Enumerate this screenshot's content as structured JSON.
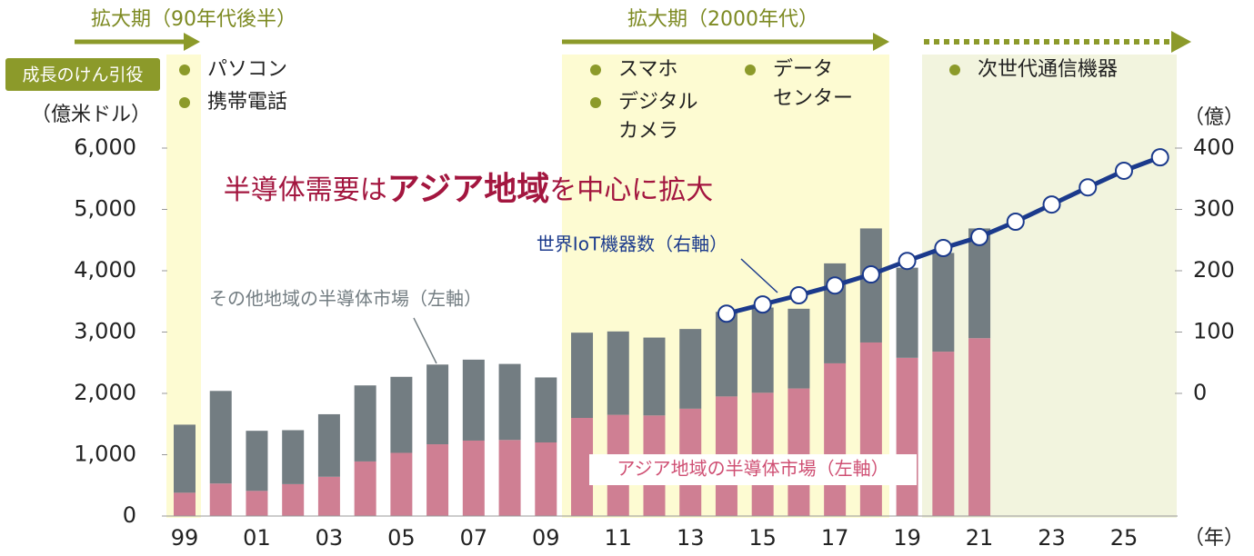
{
  "chart_data": {
    "type": "bar",
    "title_parts": [
      "半導体需要は",
      "アジア地域",
      "を中心に拡大"
    ],
    "badge": "成長のけん引役",
    "y_label": "（億米ドル）",
    "y2_label": "（億）",
    "x_label": "（年）",
    "periods": [
      {
        "label": "拡大期（90年代後半）",
        "items": [
          [
            "パソコン"
          ],
          [
            "携帯電話"
          ]
        ]
      },
      {
        "label": "拡大期（2000年代）",
        "items": [
          [
            "スマホ"
          ],
          [
            "デジタル",
            "カメラ"
          ],
          [
            "データ",
            "センター"
          ]
        ]
      },
      {
        "items": [
          [
            "次世代通信機器"
          ]
        ]
      }
    ],
    "categories": [
      "99",
      null,
      "01",
      null,
      "03",
      null,
      "05",
      null,
      "07",
      null,
      "09",
      null,
      "11",
      null,
      "13",
      null,
      "15",
      null,
      "17",
      null,
      "19",
      null,
      "21",
      null,
      "23",
      null,
      "25",
      null
    ],
    "series": [
      {
        "name": "アジア地域の半導体市場（左軸）",
        "color": "#cf7f93",
        "values": [
          380,
          530,
          410,
          520,
          640,
          890,
          1030,
          1170,
          1230,
          1240,
          1200,
          1600,
          1650,
          1640,
          1750,
          1950,
          2010,
          2080,
          2490,
          2830,
          2580,
          2680,
          2900,
          null,
          null,
          null,
          null,
          null
        ]
      },
      {
        "name": "その他地域の半導体市場（左軸）",
        "color": "#737d82",
        "values": [
          1110,
          1510,
          980,
          880,
          1020,
          1240,
          1240,
          1300,
          1320,
          1240,
          1060,
          1390,
          1360,
          1270,
          1300,
          1380,
          1390,
          1300,
          1630,
          1860,
          1470,
          1610,
          1790,
          null,
          null,
          null,
          null,
          null
        ]
      },
      {
        "name": "世界IoT機器数（右軸）",
        "color": "#1b3a8c",
        "axis": "y2",
        "values": [
          null,
          null,
          null,
          null,
          null,
          null,
          null,
          null,
          null,
          null,
          null,
          null,
          null,
          null,
          null,
          130,
          145,
          160,
          176,
          194,
          216,
          237,
          255,
          280,
          308,
          336,
          363,
          385
        ]
      }
    ],
    "ylim": [
      0,
      6000
    ],
    "yticks": [
      0,
      {
        "value": 1000,
        "label": "1,000"
      },
      {
        "value": 2000,
        "label": "2,000"
      },
      {
        "value": 3000,
        "label": "3,000"
      },
      {
        "value": 4000,
        "label": "4,000"
      },
      {
        "value": 5000,
        "label": "5,000"
      },
      {
        "value": 6000,
        "label": "6,000"
      }
    ],
    "y2lim": [
      -200,
      400
    ],
    "y2ticks": [
      0,
      100,
      200,
      300,
      400
    ]
  }
}
